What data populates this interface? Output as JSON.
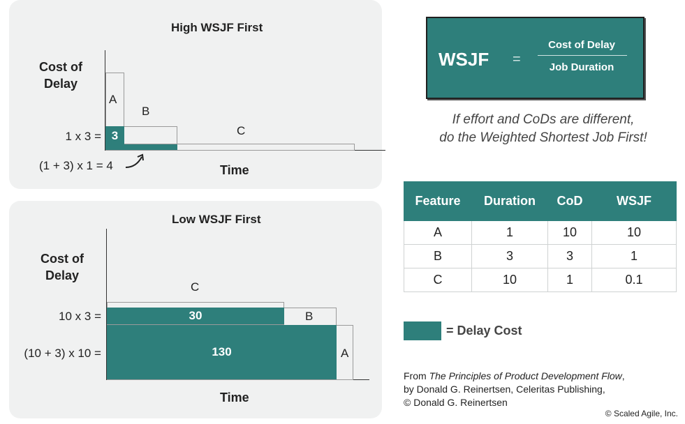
{
  "high_panel": {
    "title": "High WSJF First",
    "ylabel": "Cost of Delay",
    "xlabel": "Time",
    "label_a": "A",
    "label_b": "B",
    "label_c": "C",
    "eq1": "1 x 3 =",
    "fill_value": "3",
    "eq2": "(1 + 3) x 1 = 4"
  },
  "low_panel": {
    "title": "Low WSJF First",
    "ylabel": "Cost of Delay",
    "xlabel": "Time",
    "label_c": "C",
    "label_b": "B",
    "label_a": "A",
    "eq1": "10 x 3 =",
    "fill1": "30",
    "eq2": "(10 + 3) x 10 =",
    "fill2": "130"
  },
  "formula": {
    "lhs": "WSJF",
    "equals": "=",
    "numerator": "Cost of Delay",
    "denominator": "Job Duration"
  },
  "note": {
    "line1": "If effort and CoDs are different,",
    "line2": "do the Weighted Shortest Job First!"
  },
  "table": {
    "headers": [
      "Feature",
      "Duration",
      "CoD",
      "WSJF"
    ],
    "rows": [
      [
        "A",
        "1",
        "10",
        "10"
      ],
      [
        "B",
        "3",
        "3",
        "1"
      ],
      [
        "C",
        "10",
        "1",
        "0.1"
      ]
    ]
  },
  "legend": {
    "label": "= Delay Cost"
  },
  "credit": {
    "prefix": "From ",
    "book": "The Principles of Product Development Flow",
    "suffix": ",",
    "line2": "by Donald G. Reinertsen, Celeritas Publishing,",
    "line3": "© Donald G. Reinertsen"
  },
  "copyright": "© Scaled Agile, Inc.",
  "colors": {
    "teal": "#2e7f7b",
    "panel": "#f0f1f1"
  }
}
